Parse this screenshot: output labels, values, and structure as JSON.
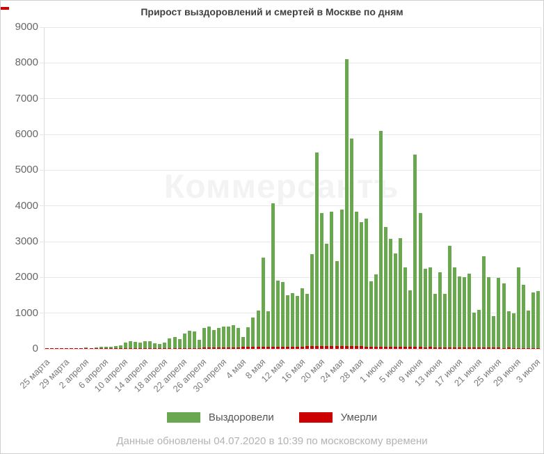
{
  "title": "Прирост выздоровлений и смертей в Москве по дням",
  "watermark": "Коммерсантъ",
  "footer": "Данные обновлены 04.07.2020 в 10:39 по московскому времени",
  "legend": {
    "recovered_label": "Выздоровели",
    "deaths_label": "Умерли"
  },
  "chart_data": {
    "type": "bar",
    "title": "Прирост выздоровлений и смертей в Москве по дням",
    "xlabel": "",
    "ylabel": "",
    "ylim": [
      0,
      9000
    ],
    "y_ticks": [
      0,
      1000,
      2000,
      3000,
      4000,
      5000,
      6000,
      7000,
      8000,
      9000
    ],
    "grid": true,
    "legend_position": "bottom",
    "x_start": "25 марта",
    "x_end": "3 июля",
    "x_tick_every": 4,
    "x_tick_labels": [
      "25 марта",
      "29 марта",
      "2 апреля",
      "6 апреля",
      "10 апреля",
      "14 апреля",
      "18 апреля",
      "22 апреля",
      "26 апреля",
      "30 апреля",
      "4 мая",
      "8 мая",
      "12 мая",
      "16 мая",
      "20 мая",
      "24 мая",
      "28 мая",
      "1 июня",
      "5 июня",
      "9 июня",
      "13 июня",
      "17 июня",
      "21 июня",
      "25 июня",
      "29 июня",
      "3 июля"
    ],
    "series": [
      {
        "name": "Выздоровели",
        "color": "#6aa84f",
        "values": [
          4,
          6,
          5,
          8,
          6,
          10,
          12,
          25,
          30,
          20,
          45,
          55,
          50,
          60,
          70,
          90,
          180,
          215,
          195,
          175,
          205,
          215,
          165,
          130,
          185,
          300,
          330,
          270,
          430,
          500,
          480,
          250,
          590,
          630,
          530,
          585,
          630,
          615,
          660,
          585,
          335,
          600,
          870,
          1070,
          2550,
          1060,
          4080,
          1900,
          1870,
          1500,
          1550,
          1480,
          1690,
          1540,
          2650,
          5500,
          3800,
          2950,
          3840,
          2460,
          3900,
          8100,
          5890,
          3845,
          3540,
          3645,
          1885,
          2090,
          6090,
          3410,
          3085,
          2665,
          3105,
          2285,
          1645,
          5430,
          3805,
          2240,
          2275,
          1545,
          2140,
          1540,
          2890,
          2275,
          2030,
          2010,
          2100,
          1010,
          1100,
          2600,
          2000,
          910,
          1990,
          1840,
          1052,
          987,
          2285,
          1798,
          1071,
          1572,
          1620
        ]
      },
      {
        "name": "Умерли",
        "color": "#cc0000",
        "values": [
          1,
          1,
          2,
          1,
          2,
          2,
          3,
          4,
          3,
          5,
          4,
          6,
          5,
          8,
          7,
          8,
          10,
          9,
          12,
          11,
          13,
          12,
          15,
          14,
          16,
          18,
          20,
          21,
          23,
          24,
          26,
          28,
          30,
          32,
          35,
          38,
          40,
          42,
          45,
          48,
          50,
          52,
          55,
          57,
          58,
          56,
          60,
          62,
          64,
          65,
          63,
          66,
          68,
          70,
          72,
          74,
          75,
          73,
          76,
          77,
          74,
          71,
          75,
          72,
          70,
          68,
          65,
          63,
          66,
          64,
          61,
          58,
          55,
          53,
          56,
          52,
          50,
          48,
          51,
          47,
          45,
          43,
          46,
          42,
          40,
          38,
          41,
          37,
          35,
          33,
          36,
          32,
          30,
          28,
          31,
          27,
          25,
          23,
          26,
          22,
          24
        ]
      }
    ]
  }
}
